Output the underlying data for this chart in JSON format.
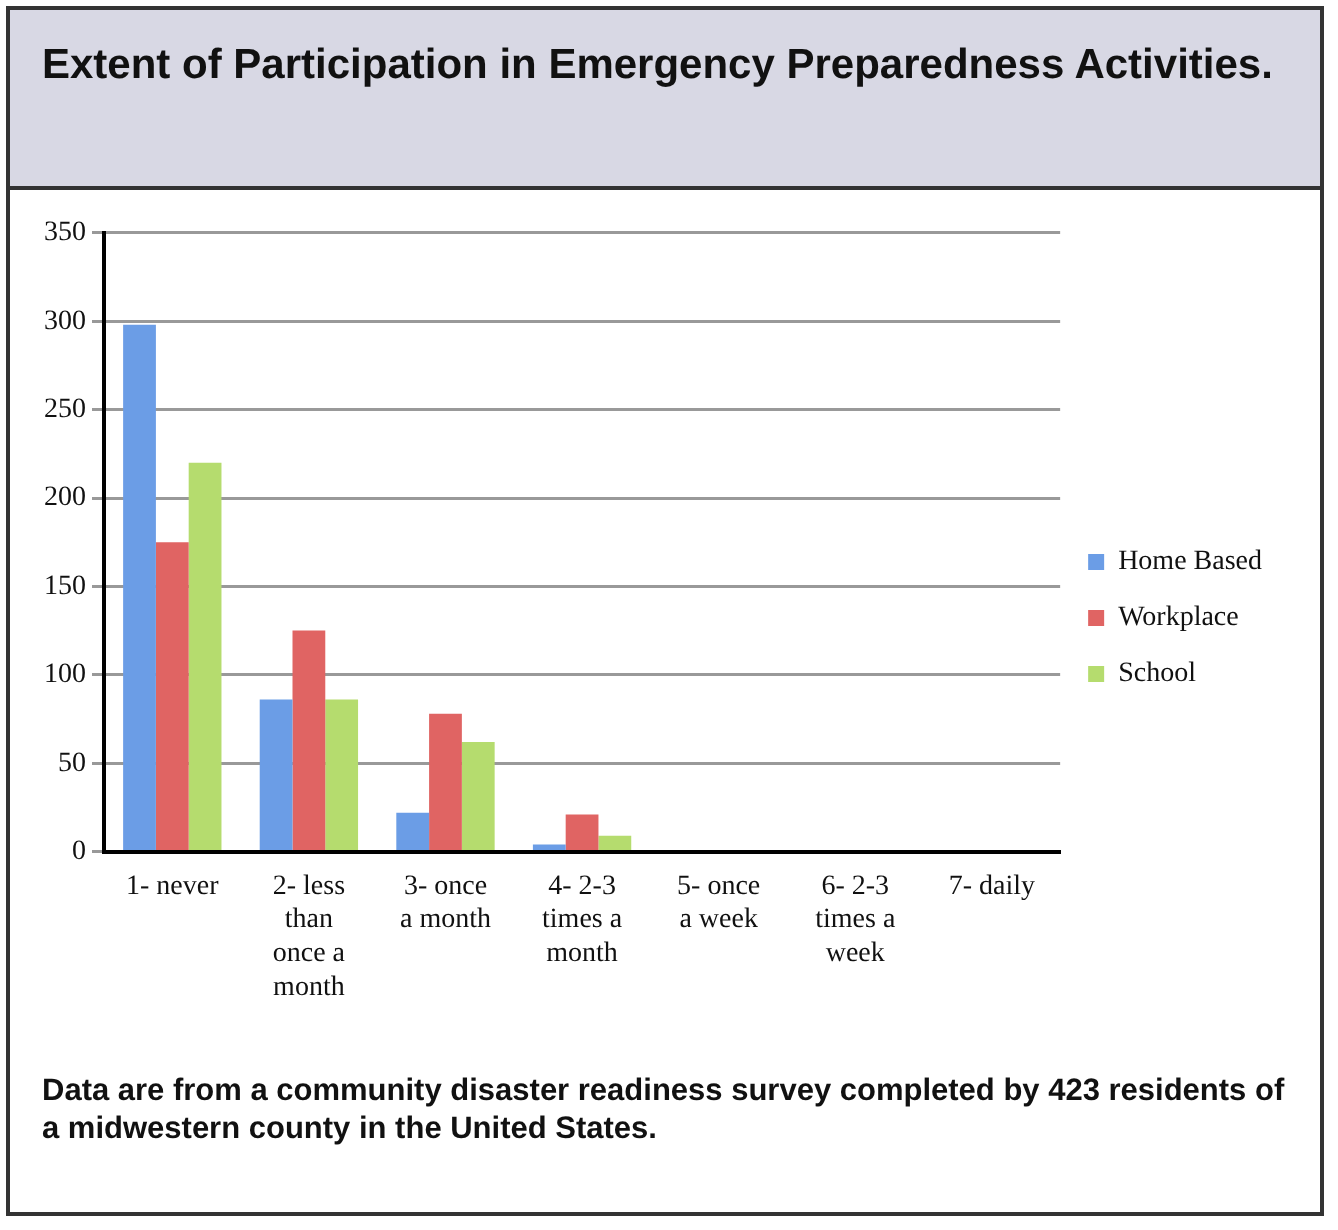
{
  "chart_data": {
    "type": "bar",
    "title": "Extent of Participation in Emergency Preparedness Activities.",
    "categories": [
      "1- never",
      "2- less than once a month",
      "3- once a month",
      "4- 2-3 times a month",
      "5- once a week",
      "6- 2-3 times a week",
      "7- daily"
    ],
    "series": [
      {
        "name": "Home Based",
        "color": "#6b9de6",
        "values": [
          298,
          86,
          22,
          4,
          0,
          0,
          0
        ]
      },
      {
        "name": "Workplace",
        "color": "#e06463",
        "values": [
          175,
          125,
          78,
          21,
          0,
          0,
          0
        ]
      },
      {
        "name": "School",
        "color": "#b5dc6e",
        "values": [
          220,
          86,
          62,
          9,
          0,
          0,
          0
        ]
      }
    ],
    "ylim": [
      0,
      350
    ],
    "yticks": [
      0,
      50,
      100,
      150,
      200,
      250,
      300,
      350
    ],
    "grid": "y",
    "legend": "right",
    "annotations": [
      "Data are from a community disaster readiness survey completed by 423 residents of a midwestern county in the United States."
    ]
  }
}
